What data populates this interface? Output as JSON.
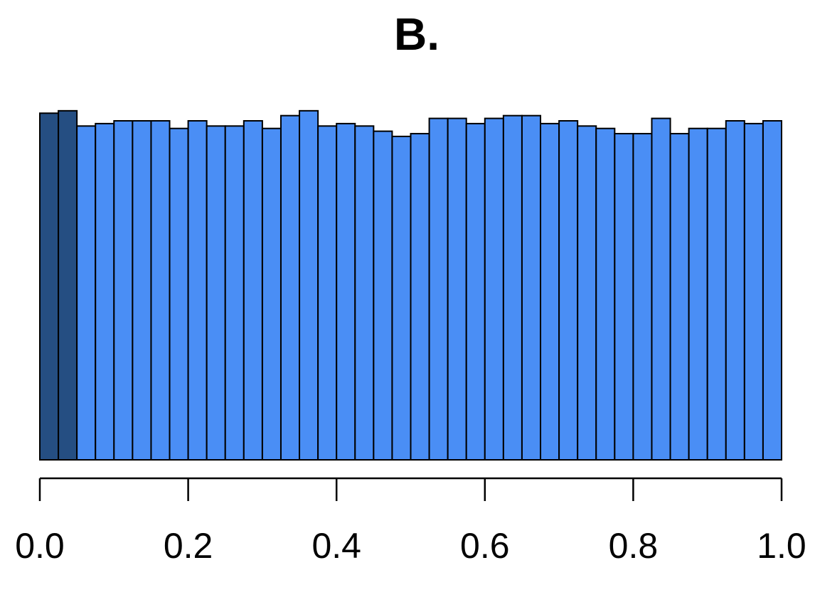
{
  "chart_data": {
    "type": "bar",
    "title": "B.",
    "xlabel": "",
    "ylabel": "",
    "xlim": [
      0,
      1
    ],
    "ylim": [
      0,
      1.06
    ],
    "bin_width": 0.025,
    "x": [
      0.0,
      0.025,
      0.05,
      0.075,
      0.1,
      0.125,
      0.15,
      0.175,
      0.2,
      0.225,
      0.25,
      0.275,
      0.3,
      0.325,
      0.35,
      0.375,
      0.4,
      0.425,
      0.45,
      0.475,
      0.5,
      0.525,
      0.55,
      0.575,
      0.6,
      0.625,
      0.65,
      0.675,
      0.7,
      0.725,
      0.75,
      0.775,
      0.8,
      0.825,
      0.85,
      0.875,
      0.9,
      0.925,
      0.95,
      0.975
    ],
    "values": [
      1.0,
      1.007,
      0.963,
      0.97,
      0.978,
      0.978,
      0.978,
      0.956,
      0.978,
      0.963,
      0.963,
      0.978,
      0.956,
      0.993,
      1.007,
      0.963,
      0.97,
      0.963,
      0.948,
      0.933,
      0.941,
      0.985,
      0.985,
      0.97,
      0.985,
      0.993,
      0.993,
      0.97,
      0.978,
      0.963,
      0.956,
      0.941,
      0.941,
      0.985,
      0.941,
      0.956,
      0.956,
      0.978,
      0.97,
      0.978
    ],
    "x_ticks": [
      0.0,
      0.2,
      0.4,
      0.6,
      0.8,
      1.0
    ],
    "x_tick_labels": [
      "0.0",
      "0.2",
      "0.4",
      "0.6",
      "0.8",
      "1.0"
    ],
    "y_axis_shown": false,
    "grid": false,
    "legend": "none",
    "colors": {
      "bar": "#4a8ef5",
      "highlight_bar": "#254e82",
      "edge": "#000000"
    },
    "highlight_bins": [
      0,
      1
    ]
  }
}
